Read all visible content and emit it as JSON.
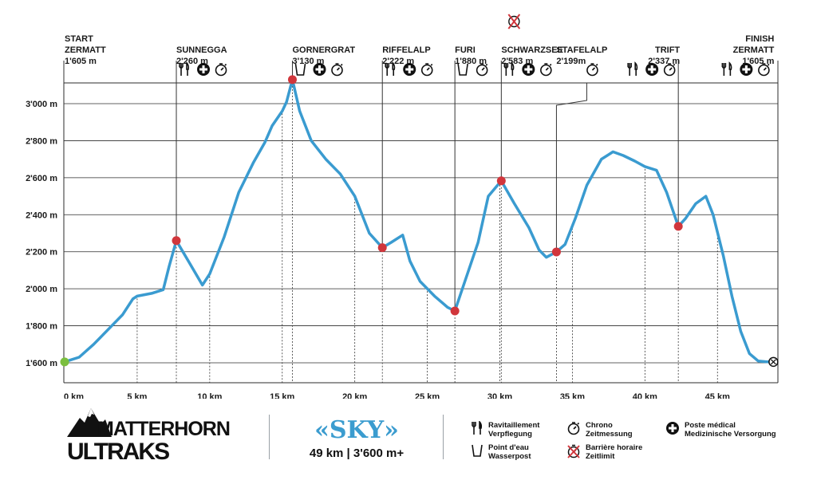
{
  "chart_data": {
    "type": "line",
    "title": "",
    "xlabel": "",
    "ylabel": "",
    "x_unit": "km",
    "xlim": [
      0,
      49
    ],
    "ylim": [
      1500,
      3200
    ],
    "x_ticks": [
      "0 km",
      "5 km",
      "10 km",
      "15 km",
      "20 km",
      "25 km",
      "30 km",
      "35 km",
      "40 km",
      "45 km"
    ],
    "y_ticks": [
      "1'600 m",
      "1'800 m",
      "2'000 m",
      "2'200 m",
      "2'400 m",
      "2'600 m",
      "2'800 m",
      "3'000 m"
    ],
    "y_tick_values": [
      1600,
      1800,
      2000,
      2200,
      2400,
      2600,
      2800,
      3000
    ],
    "x_tick_values": [
      0,
      5,
      10,
      15,
      20,
      25,
      30,
      35,
      40,
      45
    ],
    "grid": true,
    "profile": {
      "x": [
        0,
        1,
        2,
        3,
        4,
        4.7,
        5,
        6,
        6.8,
        7.2,
        7.7,
        8.6,
        9.5,
        10,
        11,
        12,
        13,
        13.8,
        14.3,
        15,
        15.3,
        15.7,
        16.2,
        17,
        18,
        19,
        20,
        21,
        21.9,
        22.5,
        23.3,
        23.8,
        24.5,
        25.5,
        26.4,
        26.9,
        27.5,
        28.5,
        29.2,
        30.1,
        31,
        32,
        32.7,
        33.2,
        33.9,
        34.5,
        35.2,
        36,
        37,
        37.8,
        38.5,
        39.3,
        40,
        40.8,
        41.5,
        42.3,
        42.8,
        43.5,
        44.2,
        44.7,
        45.4,
        46,
        46.6,
        47.2,
        47.8,
        48.4,
        48.8
      ],
      "y": [
        1605,
        1630,
        1700,
        1780,
        1860,
        1945,
        1960,
        1975,
        1995,
        2120,
        2260,
        2140,
        2020,
        2080,
        2280,
        2520,
        2680,
        2790,
        2880,
        2960,
        3010,
        3130,
        2960,
        2800,
        2700,
        2620,
        2500,
        2300,
        2222,
        2250,
        2290,
        2150,
        2040,
        1960,
        1900,
        1880,
        2020,
        2250,
        2500,
        2583,
        2460,
        2330,
        2210,
        2170,
        2199,
        2240,
        2380,
        2560,
        2700,
        2740,
        2720,
        2690,
        2660,
        2640,
        2520,
        2337,
        2380,
        2460,
        2500,
        2400,
        2180,
        1960,
        1770,
        1650,
        1610,
        1605,
        1605
      ]
    },
    "checkpoints": [
      {
        "name_lines": [
          "START",
          "ZERMATT"
        ],
        "altitude": "1'605 m",
        "x_km": 0,
        "y_m": 1605,
        "icons": [],
        "marker": "start",
        "anchor": "start"
      },
      {
        "name_lines": [
          "SUNNEGGA"
        ],
        "altitude": "2'260 m",
        "x_km": 7.7,
        "y_m": 2260,
        "icons": [
          "fork-knife",
          "medical",
          "chrono"
        ],
        "marker": "checkpoint",
        "anchor": "start"
      },
      {
        "name_lines": [
          "GORNERGRAT"
        ],
        "altitude": "3'130 m",
        "x_km": 15.7,
        "y_m": 3130,
        "icons": [
          "water",
          "medical",
          "chrono"
        ],
        "marker": "checkpoint",
        "anchor": "start"
      },
      {
        "name_lines": [
          "RIFFELALP"
        ],
        "altitude": "2'222 m",
        "x_km": 21.9,
        "y_m": 2222,
        "icons": [
          "fork-knife",
          "medical",
          "chrono"
        ],
        "marker": "checkpoint",
        "anchor": "start"
      },
      {
        "name_lines": [
          "FURI"
        ],
        "altitude": "1'880 m",
        "x_km": 26.9,
        "y_m": 1880,
        "icons": [
          "water",
          "chrono"
        ],
        "marker": "checkpoint",
        "anchor": "start"
      },
      {
        "name_lines": [
          "SCHWARZSEE"
        ],
        "altitude": "2'583 m",
        "x_km": 30.1,
        "y_m": 2583,
        "icons": [
          "fork-knife",
          "medical",
          "chrono"
        ],
        "marker": "checkpoint",
        "anchor": "start",
        "cutoff": true
      },
      {
        "name_lines": [
          "STAFELALP"
        ],
        "altitude": "2'199m",
        "x_km": 33.9,
        "y_m": 2199,
        "icons": [
          "chrono"
        ],
        "marker": "checkpoint",
        "anchor": "start"
      },
      {
        "name_lines": [
          "TRIFT"
        ],
        "altitude": "2'337 m",
        "x_km": 42.3,
        "y_m": 2337,
        "icons": [
          "fork-knife",
          "medical",
          "chrono"
        ],
        "marker": "checkpoint",
        "anchor": "end"
      },
      {
        "name_lines": [
          "FINISH",
          "ZERMATT"
        ],
        "altitude": "1'605 m",
        "x_km": 48.8,
        "y_m": 1605,
        "icons": [
          "fork-knife",
          "medical",
          "chrono"
        ],
        "marker": "finish",
        "anchor": "end"
      }
    ],
    "colors": {
      "line": "#3a9bd0",
      "checkpoint": "#d1363c",
      "start": "#7bbf3f",
      "grid": "#2b2b2b"
    }
  },
  "footer": {
    "logo_line1": "MATTERHORN",
    "logo_line2": "ULTRAKS",
    "race_name": "«SKY»",
    "race_stats": "49 km | 3'600 m+",
    "legend": [
      {
        "icon": "fork-knife-icon",
        "lines": [
          "Ravitaillement",
          "Verpflegung"
        ]
      },
      {
        "icon": "water-cup-icon",
        "lines": [
          "Point d'eau",
          "Wasserpost"
        ]
      },
      {
        "icon": "chrono-icon",
        "lines": [
          "Chrono",
          "Zeitmessung"
        ]
      },
      {
        "icon": "cutoff-icon",
        "lines": [
          "Barrière horaire",
          "Zeitlimit"
        ]
      },
      {
        "icon": "medical-icon",
        "lines": [
          "Poste médical",
          "Medizinische Versorgung"
        ]
      }
    ]
  }
}
